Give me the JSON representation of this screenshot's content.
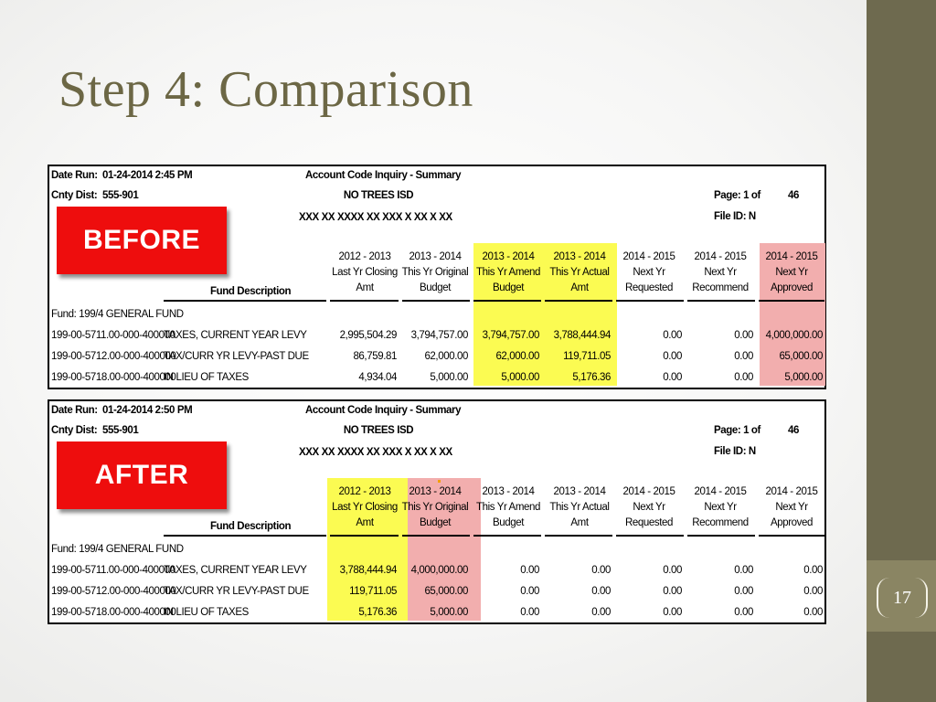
{
  "slide": {
    "title": "Step 4: Comparison",
    "page_number": "17"
  },
  "colors": {
    "sidebar": "#6e6a4f",
    "title": "#6c6745",
    "highlight_yellow": "#fbfb52",
    "highlight_pink": "#f2aeae",
    "badge_red": "#ee0d0d"
  },
  "reports": [
    {
      "badge": "BEFORE",
      "date_run_label": "Date Run:",
      "date_run": "01-24-2014 2:45 PM",
      "cnty_label": "Cnty Dist:",
      "cnty_dist": "555-901",
      "report_title": "Account Code Inquiry - Summary",
      "district": "NO TREES ISD",
      "mask": "XXX  XX  XXXX  XX  XXX  X  XX  X  XX",
      "page_label": "Page: 1  of",
      "page_total": "46",
      "file_id": "File ID: N",
      "fund_desc_header": "Fund Description",
      "columns": [
        [
          "2012 - 2013",
          "Last Yr Closing",
          "Amt"
        ],
        [
          "2013 - 2014",
          "This Yr Original",
          "Budget"
        ],
        [
          "2013 - 2014",
          "This Yr Amend",
          "Budget"
        ],
        [
          "2013 - 2014",
          "This Yr Actual",
          "Amt"
        ],
        [
          "2014 - 2015",
          "Next Yr",
          "Requested"
        ],
        [
          "2014 - 2015",
          "Next Yr",
          "Recommend"
        ],
        [
          "2014 - 2015",
          "Next Yr",
          "Approved"
        ]
      ],
      "fund_line": "Fund:  199/4     GENERAL FUND",
      "rows": [
        {
          "code": "199-00-5711.00-000-400000",
          "desc": "TAXES, CURRENT YEAR LEVY",
          "values": [
            "2,995,504.29",
            "3,794,757.00",
            "3,794,757.00",
            "3,788,444.94",
            "0.00",
            "0.00",
            "4,000,000.00"
          ]
        },
        {
          "code": "199-00-5712.00-000-400000",
          "desc": "TAX/CURR YR LEVY-PAST DUE",
          "values": [
            "86,759.81",
            "62,000.00",
            "62,000.00",
            "119,711.05",
            "0.00",
            "0.00",
            "65,000.00"
          ]
        },
        {
          "code": "199-00-5718.00-000-400000",
          "desc": "IN LIEU OF TAXES",
          "values": [
            "4,934.04",
            "5,000.00",
            "5,000.00",
            "5,176.36",
            "0.00",
            "0.00",
            "5,000.00"
          ]
        }
      ]
    },
    {
      "badge": "AFTER",
      "date_run_label": "Date Run:",
      "date_run": "01-24-2014 2:50 PM",
      "cnty_label": "Cnty Dist:",
      "cnty_dist": "555-901",
      "report_title": "Account Code Inquiry - Summary",
      "district": "NO TREES ISD",
      "mask": "XXX  XX  XXXX  XX  XXX  X  XX  X  XX",
      "page_label": "Page: 1  of",
      "page_total": "46",
      "file_id": "File ID: N",
      "fund_desc_header": "Fund Description",
      "columns": [
        [
          "2012 - 2013",
          "Last Yr Closing",
          "Amt"
        ],
        [
          "2013 - 2014",
          "This Yr Original",
          "Budget"
        ],
        [
          "2013 - 2014",
          "This Yr Amend",
          "Budget"
        ],
        [
          "2013 - 2014",
          "This Yr Actual",
          "Amt"
        ],
        [
          "2014 - 2015",
          "Next Yr",
          "Requested"
        ],
        [
          "2014 - 2015",
          "Next Yr",
          "Recommend"
        ],
        [
          "2014 - 2015",
          "Next Yr",
          "Approved"
        ]
      ],
      "fund_line": "Fund:  199/4     GENERAL FUND",
      "rows": [
        {
          "code": "199-00-5711.00-000-400000",
          "desc": "TAXES, CURRENT YEAR LEVY",
          "values": [
            "3,788,444.94",
            "4,000,000.00",
            "0.00",
            "0.00",
            "0.00",
            "0.00",
            "0.00"
          ]
        },
        {
          "code": "199-00-5712.00-000-400000",
          "desc": "TAX/CURR YR LEVY-PAST DUE",
          "values": [
            "119,711.05",
            "65,000.00",
            "0.00",
            "0.00",
            "0.00",
            "0.00",
            "0.00"
          ]
        },
        {
          "code": "199-00-5718.00-000-400000",
          "desc": "IN LIEU OF TAXES",
          "values": [
            "5,176.36",
            "5,000.00",
            "0.00",
            "0.00",
            "0.00",
            "0.00",
            "0.00"
          ]
        }
      ]
    }
  ]
}
